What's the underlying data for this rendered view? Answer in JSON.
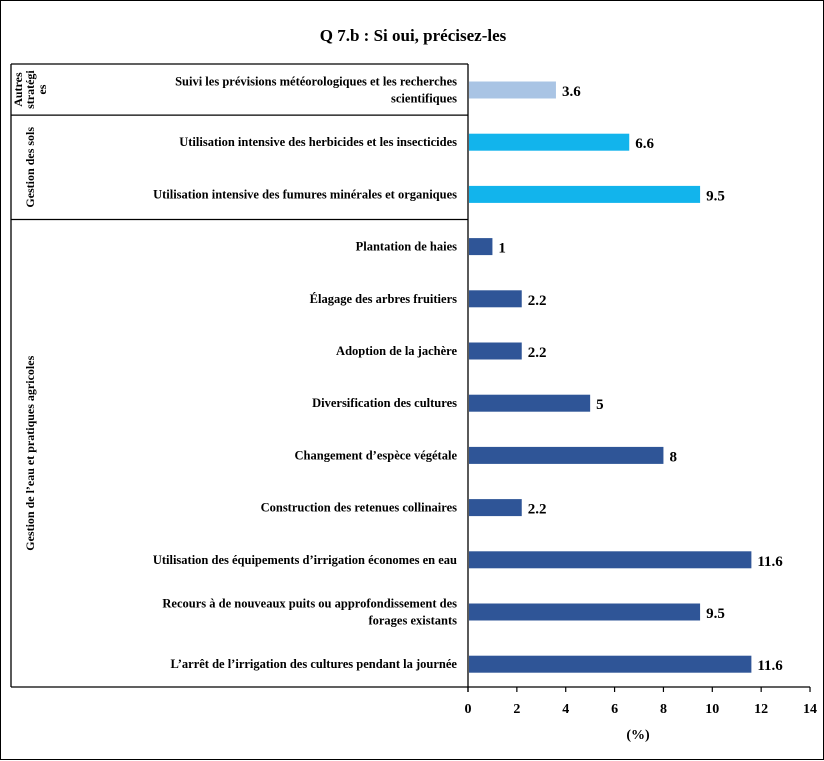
{
  "chart_data": {
    "type": "bar",
    "orientation": "horizontal",
    "title": "Q 7.b : Si oui, précisez-les",
    "xlabel": "(%)",
    "ylabel": "",
    "xlim": [
      0,
      14
    ],
    "xticks": [
      0,
      2,
      4,
      6,
      8,
      10,
      12,
      14
    ],
    "grid": false,
    "legend": "none",
    "groups": [
      {
        "name": "Autres stratégies",
        "label_lines": [
          "Autres",
          "stratégi",
          "es"
        ],
        "color": "#a9c4e4",
        "items": [
          {
            "label": [
              "Suivi les prévisions météorologiques et les recherches",
              "scientifiques"
            ],
            "value": 3.6
          }
        ]
      },
      {
        "name": "Gestion des sols",
        "label_lines": [
          "Gestion des sols"
        ],
        "color": "#12b4ec",
        "items": [
          {
            "label": [
              "Utilisation intensive des herbicides et les insecticides"
            ],
            "value": 6.6
          },
          {
            "label": [
              "Utilisation intensive des fumures minérales et organiques"
            ],
            "value": 9.5
          }
        ]
      },
      {
        "name": "Gestion de l’eau et pratiques agricoles",
        "label_lines": [
          "Gestion de l’eau et pratiques agricoles"
        ],
        "color": "#2f5597",
        "items": [
          {
            "label": [
              "Plantation de haies"
            ],
            "value": 1
          },
          {
            "label": [
              "Élagage des arbres fruitiers"
            ],
            "value": 2.2
          },
          {
            "label": [
              "Adoption de la jachère"
            ],
            "value": 2.2
          },
          {
            "label": [
              "Diversification des cultures"
            ],
            "value": 5
          },
          {
            "label": [
              "Changement d’espèce végétale"
            ],
            "value": 8
          },
          {
            "label": [
              "Construction des retenues collinaires"
            ],
            "value": 2.2
          },
          {
            "label": [
              "Utilisation des équipements d’irrigation économes en eau"
            ],
            "value": 11.6
          },
          {
            "label": [
              "Recours à de nouveaux puits ou approfondissement des",
              "forages existants"
            ],
            "value": 9.5
          },
          {
            "label": [
              "L’arrêt de l’irrigation des cultures pendant la journée"
            ],
            "value": 11.6
          }
        ]
      }
    ]
  }
}
